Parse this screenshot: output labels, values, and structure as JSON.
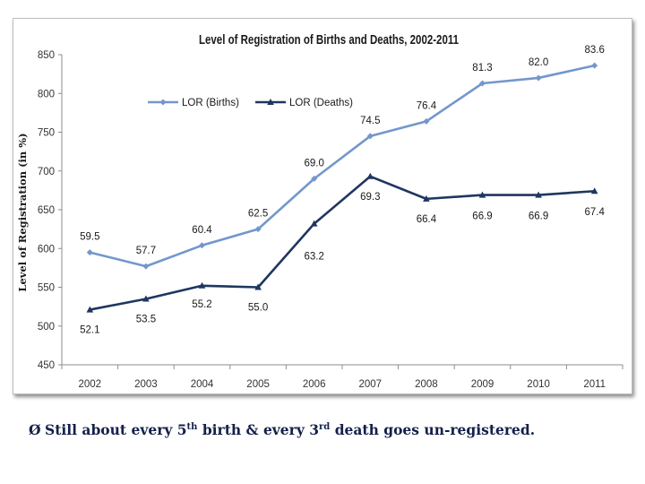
{
  "chart_data": {
    "type": "line",
    "title": "Level of Registration of Births and Deaths, 2002-2011",
    "ylabel": "Level of Registration (in %)",
    "xlabel": "",
    "x": [
      "2002",
      "2003",
      "2004",
      "2005",
      "2006",
      "2007",
      "2008",
      "2009",
      "2010",
      "2011"
    ],
    "y_ticks": [
      "450",
      "500",
      "550",
      "600",
      "650",
      "700",
      "750",
      "800",
      "850"
    ],
    "ylim": [
      450,
      850
    ],
    "grid": false,
    "legend_position": "top-left",
    "series": [
      {
        "name": "LOR (Births)",
        "color": "#7397cc",
        "marker": "diamond",
        "values": [
          595,
          577,
          604,
          625,
          690,
          745,
          764,
          813,
          820,
          836
        ],
        "labels": [
          "59.5",
          "57.7",
          "60.4",
          "62.5",
          "69.0",
          "74.5",
          "76.4",
          "81.3",
          "82.0",
          "83.6"
        ]
      },
      {
        "name": "LOR (Deaths)",
        "color": "#1f3660",
        "marker": "triangle",
        "values": [
          521,
          535,
          552,
          550,
          632,
          693,
          664,
          669,
          669,
          674
        ],
        "labels": [
          "52.1",
          "53.5",
          "55.2",
          "55.0",
          "63.2",
          "69.3",
          "66.4",
          "66.9",
          "66.9",
          "67.4"
        ]
      }
    ]
  },
  "note": {
    "bullet": "Ø",
    "part1": "Still about every 5",
    "sup1": "th",
    "part2": " birth & every 3",
    "sup2": "rd",
    "part3": " death goes un-registered."
  }
}
